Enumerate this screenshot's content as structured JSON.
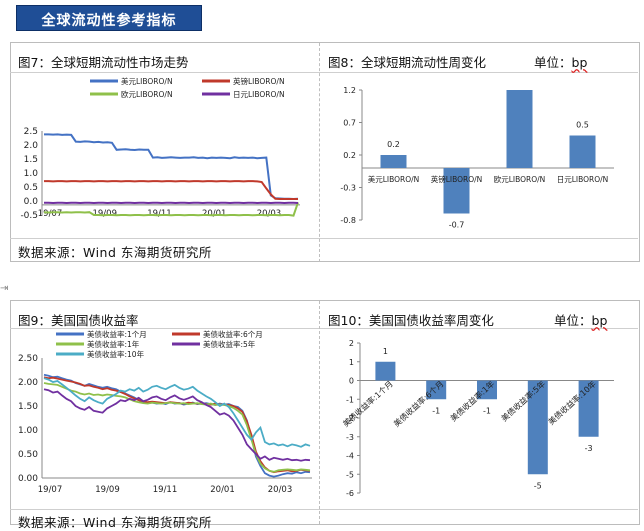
{
  "banner": {
    "text": "全球流动性参考指标"
  },
  "panels": {
    "p7": {
      "title": "图7：全球短期流动性市场走势"
    },
    "p8": {
      "title": "图8：全球短期流动性周变化",
      "unit_label": "单位：",
      "unit": "bp"
    },
    "p9": {
      "title": "图9：美国国债收益率"
    },
    "p10": {
      "title": "图10：美国国债收益率周变化",
      "unit_label": "单位：",
      "unit": "bp"
    }
  },
  "sources": {
    "top": "数据来源：Wind   东海期货研究所",
    "bottom": "数据来源：Wind   东海期货研究所"
  },
  "colors": {
    "banner": "#1f4e96",
    "blue": "#4472c4",
    "red": "#c0392b",
    "green": "#8fc04a",
    "purple": "#7030a0",
    "teal": "#4bacc6",
    "orange": "#f0902a",
    "bar": "#4f81bd"
  },
  "chart_data": [
    {
      "id": "fig7",
      "type": "line",
      "ylim": [
        -0.5,
        2.5
      ],
      "yticks": [
        "2.5",
        "2.0",
        "1.5",
        "1.0",
        "0.5",
        "0.0",
        "-0.5"
      ],
      "xticks": [
        "19/07",
        "19/09",
        "19/11",
        "20/01",
        "20/03"
      ],
      "series": [
        {
          "name": "美元LIBORO/N",
          "color": "#4472c4",
          "values": [
            2.38,
            2.38,
            2.37,
            2.38,
            2.36,
            2.37,
            2.36,
            2.12,
            2.11,
            2.13,
            2.12,
            2.1,
            2.11,
            2.09,
            2.1,
            2.08,
            1.83,
            1.84,
            1.85,
            1.83,
            1.82,
            1.84,
            1.83,
            1.83,
            1.55,
            1.56,
            1.54,
            1.55,
            1.56,
            1.55,
            1.54,
            1.55,
            1.55,
            1.56,
            1.54,
            1.55,
            1.53,
            1.55,
            1.54,
            1.55,
            1.54,
            1.53,
            1.56,
            1.54,
            1.55,
            1.54,
            1.55,
            1.53,
            1.54,
            1.55,
            0.2,
            0.1,
            0.09,
            0.08,
            0.08,
            0.07,
            0.08
          ]
        },
        {
          "name": "英镑LIBORO/N",
          "color": "#c0392b",
          "values": [
            0.71,
            0.71,
            0.7,
            0.71,
            0.71,
            0.7,
            0.71,
            0.71,
            0.7,
            0.71,
            0.71,
            0.7,
            0.71,
            0.71,
            0.7,
            0.71,
            0.71,
            0.7,
            0.71,
            0.71,
            0.7,
            0.71,
            0.71,
            0.7,
            0.71,
            0.71,
            0.7,
            0.71,
            0.71,
            0.7,
            0.71,
            0.71,
            0.7,
            0.71,
            0.71,
            0.7,
            0.71,
            0.71,
            0.7,
            0.71,
            0.71,
            0.7,
            0.71,
            0.71,
            0.7,
            0.71,
            0.71,
            0.7,
            0.68,
            0.45,
            0.24,
            0.08,
            0.07,
            0.07,
            0.07,
            0.07,
            0.07
          ]
        },
        {
          "name": "欧元LIBORO/N",
          "color": "#8fc04a",
          "values": [
            -0.4,
            -0.41,
            -0.4,
            -0.4,
            -0.41,
            -0.4,
            -0.41,
            -0.4,
            -0.4,
            -0.41,
            -0.4,
            -0.5,
            -0.5,
            -0.51,
            -0.5,
            -0.5,
            -0.51,
            -0.5,
            -0.5,
            -0.51,
            -0.5,
            -0.5,
            -0.51,
            -0.5,
            -0.5,
            -0.51,
            -0.5,
            -0.5,
            -0.51,
            -0.5,
            -0.5,
            -0.51,
            -0.5,
            -0.5,
            -0.51,
            -0.5,
            -0.5,
            -0.51,
            -0.5,
            -0.5,
            -0.51,
            -0.5,
            -0.5,
            -0.51,
            -0.5,
            -0.5,
            -0.51,
            -0.5,
            -0.5,
            -0.51,
            -0.5,
            -0.5,
            -0.51,
            -0.5,
            -0.5,
            -0.52,
            -0.05
          ]
        },
        {
          "name": "日元LIBORO/N",
          "color": "#7030a0",
          "values": [
            -0.06,
            -0.06,
            -0.07,
            -0.06,
            -0.06,
            -0.07,
            -0.06,
            -0.06,
            -0.07,
            -0.06,
            -0.06,
            -0.07,
            -0.06,
            -0.06,
            -0.07,
            -0.06,
            -0.06,
            -0.07,
            -0.06,
            -0.06,
            -0.07,
            -0.06,
            -0.06,
            -0.07,
            -0.06,
            -0.06,
            -0.07,
            -0.06,
            -0.06,
            -0.07,
            -0.06,
            -0.06,
            -0.07,
            -0.06,
            -0.06,
            -0.07,
            -0.06,
            -0.06,
            -0.07,
            -0.06,
            -0.06,
            -0.07,
            -0.06,
            -0.06,
            -0.07,
            -0.06,
            -0.06,
            -0.07,
            -0.06,
            -0.06,
            -0.07,
            -0.06,
            -0.06,
            -0.07,
            -0.06,
            -0.06,
            -0.07
          ]
        }
      ]
    },
    {
      "id": "fig8",
      "type": "bar",
      "ylim": [
        -0.8,
        1.2
      ],
      "yticks": [
        "1.2",
        "0.7",
        "0.2",
        "-0.3",
        "-0.8"
      ],
      "categories": [
        "美元LIBORO/N",
        "英镑LIBORO/N",
        "欧元LIBORO/N",
        "日元LIBORO/N"
      ],
      "values": [
        0.2,
        -0.7,
        1.2,
        0.5
      ],
      "data_labels": [
        "0.2",
        "-0.7",
        "",
        "0.5"
      ]
    },
    {
      "id": "fig9",
      "type": "line",
      "ylim": [
        0,
        2.5
      ],
      "yticks": [
        "2.50",
        "2.00",
        "1.50",
        "1.00",
        "0.50",
        "0.00"
      ],
      "xticks": [
        "19/07",
        "19/09",
        "19/11",
        "20/01",
        "20/03"
      ],
      "series": [
        {
          "name": "美债收益率:1个月",
          "color": "#4472c4",
          "values": [
            2.15,
            2.13,
            2.1,
            2.11,
            2.08,
            2.05,
            2.03,
            1.98,
            1.95,
            1.92,
            1.96,
            1.93,
            1.9,
            1.88,
            1.9,
            1.87,
            1.85,
            1.8,
            1.76,
            1.72,
            1.68,
            1.62,
            1.58,
            1.56,
            1.57,
            1.55,
            1.56,
            1.54,
            1.58,
            1.55,
            1.56,
            1.53,
            1.55,
            1.57,
            1.54,
            1.55,
            1.56,
            1.54,
            1.52,
            1.55,
            1.53,
            1.54,
            1.5,
            1.48,
            1.4,
            1.2,
            0.85,
            0.45,
            0.25,
            0.1,
            0.05,
            0.03,
            0.05,
            0.08,
            0.1,
            0.09,
            0.12,
            0.1,
            0.13,
            0.12
          ]
        },
        {
          "name": "美债收益率:6个月",
          "color": "#c0392b",
          "values": [
            2.1,
            2.08,
            2.09,
            2.07,
            2.05,
            2.03,
            2.01,
            1.99,
            1.96,
            1.92,
            1.93,
            1.9,
            1.88,
            1.85,
            1.87,
            1.84,
            1.82,
            1.79,
            1.75,
            1.7,
            1.66,
            1.62,
            1.6,
            1.58,
            1.59,
            1.58,
            1.57,
            1.56,
            1.58,
            1.57,
            1.56,
            1.55,
            1.57,
            1.56,
            1.55,
            1.56,
            1.54,
            1.53,
            1.55,
            1.53,
            1.54,
            1.52,
            1.5,
            1.45,
            1.38,
            1.18,
            0.9,
            0.55,
            0.35,
            0.22,
            0.15,
            0.12,
            0.14,
            0.15,
            0.16,
            0.14,
            0.15,
            0.17,
            0.16,
            0.15
          ]
        },
        {
          "name": "美债收益率:1年",
          "color": "#8fc04a",
          "values": [
            1.98,
            1.96,
            1.95,
            1.94,
            1.9,
            1.86,
            1.82,
            1.8,
            1.76,
            1.74,
            1.76,
            1.73,
            1.74,
            1.72,
            1.74,
            1.73,
            1.71,
            1.7,
            1.68,
            1.64,
            1.6,
            1.58,
            1.56,
            1.55,
            1.57,
            1.56,
            1.55,
            1.56,
            1.57,
            1.56,
            1.55,
            1.56,
            1.54,
            1.55,
            1.56,
            1.54,
            1.53,
            1.55,
            1.52,
            1.53,
            1.52,
            1.5,
            1.46,
            1.4,
            1.32,
            1.1,
            0.8,
            0.5,
            0.3,
            0.2,
            0.15,
            0.13,
            0.16,
            0.17,
            0.18,
            0.17,
            0.16,
            0.18,
            0.17,
            0.16
          ]
        },
        {
          "name": "美债收益率:5年",
          "color": "#7030a0",
          "values": [
            1.85,
            1.83,
            1.78,
            1.8,
            1.72,
            1.65,
            1.6,
            1.5,
            1.45,
            1.42,
            1.48,
            1.4,
            1.38,
            1.36,
            1.45,
            1.5,
            1.55,
            1.62,
            1.6,
            1.65,
            1.62,
            1.67,
            1.6,
            1.63,
            1.68,
            1.7,
            1.65,
            1.62,
            1.68,
            1.72,
            1.66,
            1.63,
            1.66,
            1.7,
            1.62,
            1.58,
            1.52,
            1.48,
            1.4,
            1.32,
            1.35,
            1.3,
            1.2,
            1.05,
            0.9,
            0.7,
            0.6,
            0.5,
            0.4,
            0.45,
            0.38,
            0.42,
            0.4,
            0.38,
            0.4,
            0.37,
            0.38,
            0.36,
            0.38,
            0.37
          ]
        },
        {
          "name": "美债收益率:10年",
          "color": "#4bacc6",
          "values": [
            2.08,
            2.05,
            2.0,
            2.02,
            1.95,
            1.88,
            1.8,
            1.72,
            1.65,
            1.6,
            1.68,
            1.62,
            1.58,
            1.55,
            1.65,
            1.7,
            1.75,
            1.82,
            1.8,
            1.85,
            1.82,
            1.88,
            1.8,
            1.84,
            1.9,
            1.92,
            1.88,
            1.85,
            1.9,
            1.94,
            1.88,
            1.84,
            1.86,
            1.9,
            1.82,
            1.76,
            1.7,
            1.65,
            1.58,
            1.5,
            1.55,
            1.48,
            1.35,
            1.2,
            1.05,
            0.9,
            0.8,
            0.95,
            1.05,
            0.75,
            0.7,
            0.72,
            0.68,
            0.7,
            0.66,
            0.7,
            0.68,
            0.65,
            0.7,
            0.67
          ]
        }
      ]
    },
    {
      "id": "fig10",
      "type": "bar",
      "ylim": [
        -6,
        2
      ],
      "yticks": [
        "2",
        "1",
        "0",
        "-1",
        "-2",
        "-3",
        "-4",
        "-5",
        "-6"
      ],
      "categories": [
        "美债收益率:1个月",
        "美债收益率:6个月",
        "美债收益率:1年",
        "美债收益率:5年",
        "美债收益率:10年"
      ],
      "values": [
        1,
        -1,
        -1,
        -5,
        -3
      ],
      "data_labels": [
        "1",
        "-1",
        "-1",
        "-5",
        "-3"
      ]
    }
  ]
}
